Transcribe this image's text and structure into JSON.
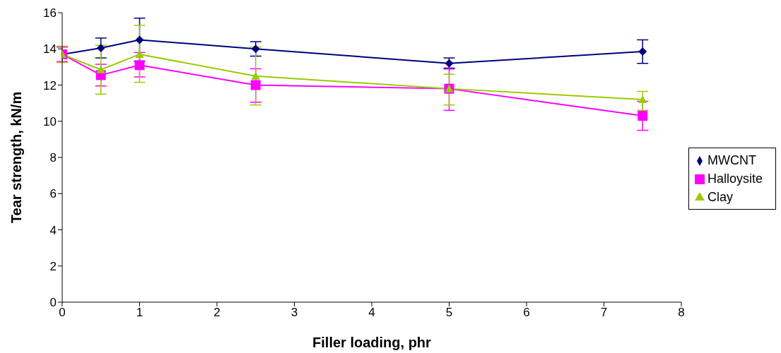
{
  "chart_data": {
    "type": "line",
    "xlabel": "Filler loading, phr",
    "ylabel": "Tear strength, kN/m",
    "x": [
      0,
      0.5,
      1,
      2.5,
      5,
      7.5
    ],
    "series": [
      {
        "name": "MWCNT",
        "color": "#000080",
        "marker": "diamond",
        "values": [
          13.7,
          14.05,
          14.5,
          14.0,
          13.2,
          13.85
        ],
        "errors": [
          null,
          [
            13.5,
            14.6
          ],
          [
            13.3,
            15.7
          ],
          [
            13.6,
            14.4
          ],
          [
            12.9,
            13.5
          ],
          [
            13.2,
            14.5
          ]
        ]
      },
      {
        "name": "Halloysite",
        "color": "#ff00ff",
        "marker": "square",
        "values": [
          13.7,
          12.55,
          13.1,
          12.0,
          11.8,
          10.3
        ],
        "errors": [
          [
            13.3,
            14.1
          ],
          [
            11.95,
            13.15
          ],
          [
            12.45,
            13.8
          ],
          [
            11.05,
            12.9
          ],
          [
            10.6,
            12.95
          ],
          [
            9.5,
            11.1
          ]
        ]
      },
      {
        "name": "Clay",
        "color": "#99cc00",
        "marker": "triangle",
        "values": [
          13.7,
          12.85,
          13.7,
          12.5,
          11.8,
          11.2
        ],
        "errors": [
          [
            13.25,
            14.15
          ],
          [
            11.5,
            14.2
          ],
          [
            12.15,
            15.3
          ],
          [
            10.9,
            14.1
          ],
          [
            10.9,
            12.6
          ],
          [
            10.6,
            11.65
          ]
        ]
      }
    ],
    "xlim": [
      0,
      8
    ],
    "xticks": [
      0,
      1,
      2,
      3,
      4,
      5,
      6,
      7,
      8
    ],
    "ylim": [
      0,
      16
    ],
    "yticks": [
      0,
      2,
      4,
      6,
      8,
      10,
      12,
      14,
      16
    ],
    "grid": false,
    "legend": "right"
  }
}
